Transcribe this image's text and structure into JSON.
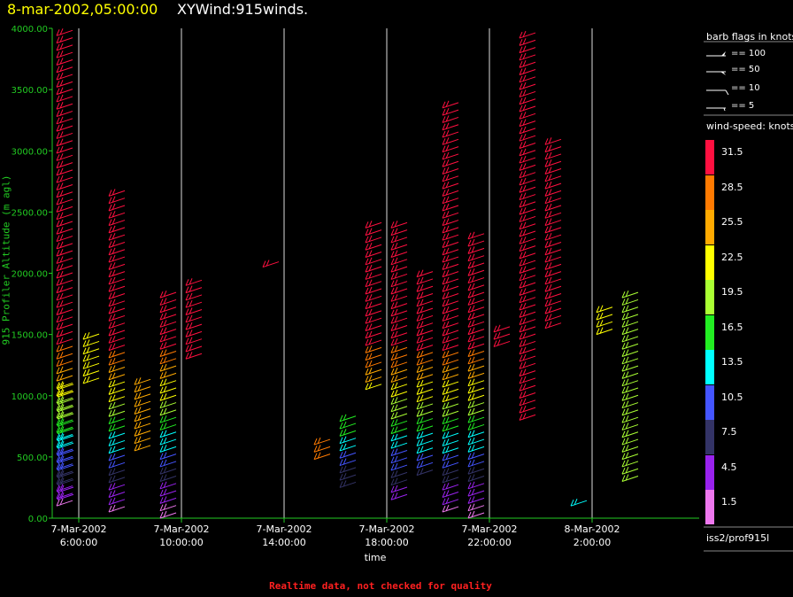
{
  "title": {
    "date": "8-mar-2002,05:00:00",
    "name": "XYWind:915winds."
  },
  "note": "Realtime data, not checked for quality",
  "source": "iss2/prof915l",
  "legend": {
    "barb_header": "barb flags in knots",
    "barbs": [
      {
        "label": "== 100",
        "kind": "pennant"
      },
      {
        "label": "== 50",
        "kind": "flag"
      },
      {
        "label": "== 10",
        "kind": "full"
      },
      {
        "label": "== 5",
        "kind": "half"
      }
    ],
    "speed_header": "wind-speed: knots",
    "colorbar": [
      {
        "label": "31.5",
        "color": "#ff1040"
      },
      {
        "label": "28.5",
        "color": "#ff7a00"
      },
      {
        "label": "25.5",
        "color": "#ffaa00"
      },
      {
        "label": "22.5",
        "color": "#ffff00"
      },
      {
        "label": "19.5",
        "color": "#aaff33"
      },
      {
        "label": "16.5",
        "color": "#22ee22"
      },
      {
        "label": "13.5",
        "color": "#00ffff"
      },
      {
        "label": "10.5",
        "color": "#4455ff"
      },
      {
        "label": "7.5",
        "color": "#333366"
      },
      {
        "label": "4.5",
        "color": "#9922ee"
      },
      {
        "label": "1.5",
        "color": "#ee77ee"
      }
    ]
  },
  "chart_data": {
    "type": "scatter",
    "title": "XYWind:915winds.",
    "xlabel": "time",
    "ylabel": "915 Profiler Altitude (m agl)",
    "ylim": [
      0,
      4000
    ],
    "yticks": [
      "0.00",
      "500.00",
      "1000.00",
      "1500.00",
      "2000.00",
      "2500.00",
      "3000.00",
      "3500.00",
      "4000.00"
    ],
    "xticks": [
      {
        "date": "7-Mar-2002",
        "time": "6:00:00"
      },
      {
        "date": "7-Mar-2002",
        "time": "10:00:00"
      },
      {
        "date": "7-Mar-2002",
        "time": "14:00:00"
      },
      {
        "date": "7-Mar-2002",
        "time": "18:00:00"
      },
      {
        "date": "7-Mar-2002",
        "time": "22:00:00"
      },
      {
        "date": "8-Mar-2002",
        "time": "2:00:00"
      }
    ],
    "grid": "vertical lines every hour",
    "series": [
      {
        "time": "7-Mar-2002 5:00",
        "alt": [
          100,
          3950
        ],
        "speed": "mixed"
      },
      {
        "time": "7-Mar-2002 6:00",
        "alt": [
          150,
          1100
        ],
        "speed": "mixed"
      },
      {
        "time": "7-Mar-2002 7:00",
        "alt": [
          1100,
          1500
        ],
        "speed": "19.5-25.5"
      },
      {
        "time": "7-Mar-2002 8:00",
        "alt": [
          50,
          2650
        ],
        "speed": "mixed"
      },
      {
        "time": "7-Mar-2002 9:00",
        "alt": [
          550,
          1100
        ],
        "speed": "19.5-31.5"
      },
      {
        "time": "7-Mar-2002 10:00",
        "alt": [
          0,
          1800
        ],
        "speed": "mixed"
      },
      {
        "time": "7-Mar-2002 11:00",
        "alt": [
          1300,
          1900
        ],
        "speed": "31.5"
      },
      {
        "time": "7-Mar-2002 14:00",
        "alt": [
          2050,
          2100
        ],
        "speed": "31.5"
      },
      {
        "time": "7-Mar-2002 16:00",
        "alt": [
          480,
          600
        ],
        "speed": "22.5-31.5"
      },
      {
        "time": "7-Mar-2002 17:00",
        "alt": [
          250,
          800
        ],
        "speed": "mixed"
      },
      {
        "time": "7-Mar-2002 18:00",
        "alt": [
          1050,
          2400
        ],
        "speed": "mixed"
      },
      {
        "time": "7-Mar-2002 19:00",
        "alt": [
          150,
          2400
        ],
        "speed": "mixed"
      },
      {
        "time": "7-Mar-2002 20:00",
        "alt": [
          350,
          2000
        ],
        "speed": "mixed"
      },
      {
        "time": "7-Mar-2002 21:00",
        "alt": [
          50,
          3350
        ],
        "speed": "mixed"
      },
      {
        "time": "7-Mar-2002 22:00",
        "alt": [
          0,
          2300
        ],
        "speed": "mixed"
      },
      {
        "time": "7-Mar-2002 23:00",
        "alt": [
          1400,
          1550
        ],
        "speed": "31.5"
      },
      {
        "time": "8-Mar-2002 0:00",
        "alt": [
          800,
          3950
        ],
        "speed": "31.5"
      },
      {
        "time": "8-Mar-2002 1:00",
        "alt": [
          1550,
          3100
        ],
        "speed": "28.5-31.5"
      },
      {
        "time": "8-Mar-2002 2:00",
        "alt": [
          100,
          150
        ],
        "speed": "10.5-13.5"
      },
      {
        "time": "8-Mar-2002 3:00",
        "alt": [
          1500,
          1700
        ],
        "speed": "19.5-22.5"
      },
      {
        "time": "8-Mar-2002 4:00",
        "alt": [
          300,
          1850
        ],
        "speed": "16.5-22.5"
      }
    ]
  }
}
